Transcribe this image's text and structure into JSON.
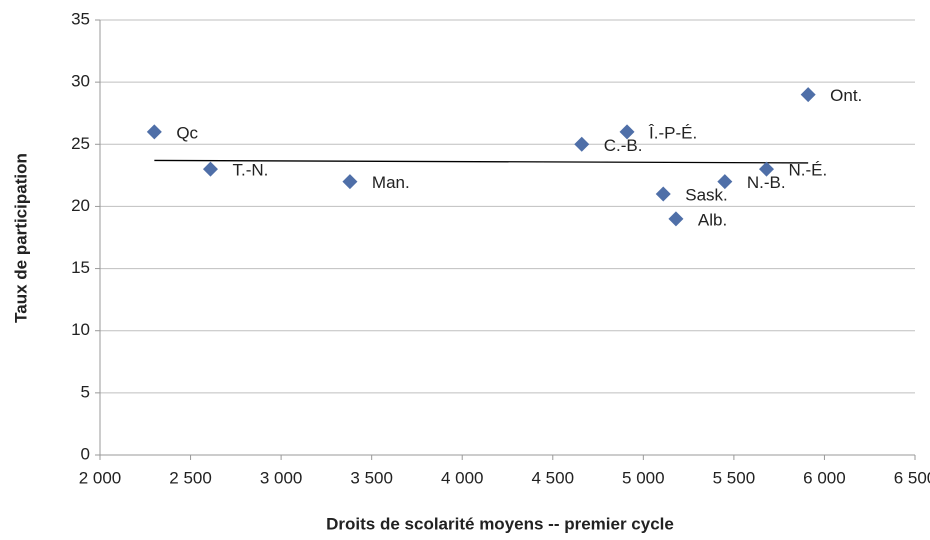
{
  "chart_data": {
    "type": "scatter",
    "x_label": "Droits de scolarité moyens -- premier cycle",
    "y_label": "Taux de participation",
    "labels": [
      "Qc",
      "T.-N.",
      "Man.",
      "C.-B.",
      "Î.-P-É.",
      "Sask.",
      "Alb.",
      "N.-B.",
      "N.-É.",
      "Ont."
    ],
    "x": [
      2300,
      2610,
      3380,
      4660,
      4910,
      5110,
      5180,
      5450,
      5680,
      5910
    ],
    "values": [
      26,
      23,
      22,
      25,
      26,
      21,
      19,
      22,
      23,
      29
    ],
    "color": "#4f6fa8",
    "trendline": {
      "x": [
        2300,
        5910
      ],
      "values": [
        23.7,
        23.5
      ],
      "color": "#000000"
    },
    "xlim": [
      2000,
      6500
    ],
    "xticks": [
      {
        "value": 2000,
        "label": "2 000"
      },
      {
        "value": 2500,
        "label": "2 500"
      },
      {
        "value": 3000,
        "label": "3 000"
      },
      {
        "value": 3500,
        "label": "3 500"
      },
      {
        "value": 4000,
        "label": "4 000"
      },
      {
        "value": 4500,
        "label": "4 500"
      },
      {
        "value": 5000,
        "label": "5 000"
      },
      {
        "value": 5500,
        "label": "5 500"
      },
      {
        "value": 6000,
        "label": "6 000"
      },
      {
        "value": 6500,
        "label": "6 500"
      }
    ],
    "ylim": [
      0,
      35
    ],
    "yticks": [
      0,
      5,
      10,
      15,
      20,
      25,
      30,
      35
    ],
    "grid": true
  }
}
